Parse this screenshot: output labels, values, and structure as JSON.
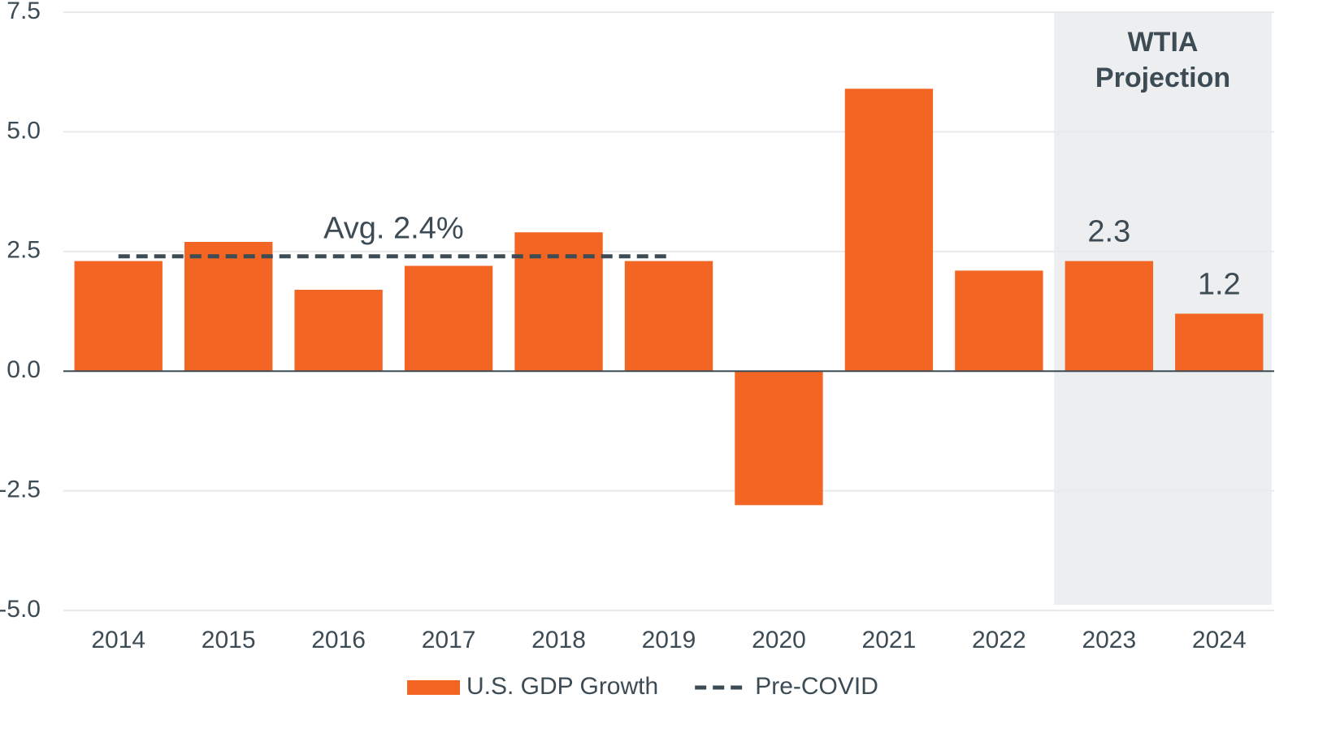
{
  "chart_data": {
    "type": "bar",
    "categories": [
      "2014",
      "2015",
      "2016",
      "2017",
      "2018",
      "2019",
      "2020",
      "2021",
      "2022",
      "2023",
      "2024"
    ],
    "series": [
      {
        "name": "U.S. GDP Growth",
        "type": "bar",
        "color": "#f26522",
        "values": [
          2.3,
          2.7,
          1.7,
          2.2,
          2.9,
          2.3,
          -2.8,
          5.9,
          2.1,
          2.3,
          1.2
        ],
        "value_labels": [
          null,
          null,
          null,
          null,
          null,
          null,
          null,
          null,
          null,
          "2.3",
          "1.2"
        ]
      },
      {
        "name": "Pre-COVID",
        "type": "line",
        "dashed": true,
        "color": "#3d4b55",
        "values": [
          2.4,
          2.4,
          2.4,
          2.4,
          2.4,
          2.4,
          null,
          null,
          null,
          null,
          null
        ]
      }
    ],
    "annotations": [
      "Avg. 2.4%"
    ],
    "projection": {
      "text": "WTIA Projection",
      "start": "2023"
    },
    "ylim": [
      -5,
      7.5
    ],
    "yticks": [
      {
        "value": -5,
        "label": "-5.0"
      },
      -2.5,
      {
        "value": 0,
        "label": "0.0"
      },
      2.5,
      {
        "value": 5,
        "label": "5.0"
      },
      7.5
    ],
    "grid": true,
    "legend": "bottom"
  }
}
